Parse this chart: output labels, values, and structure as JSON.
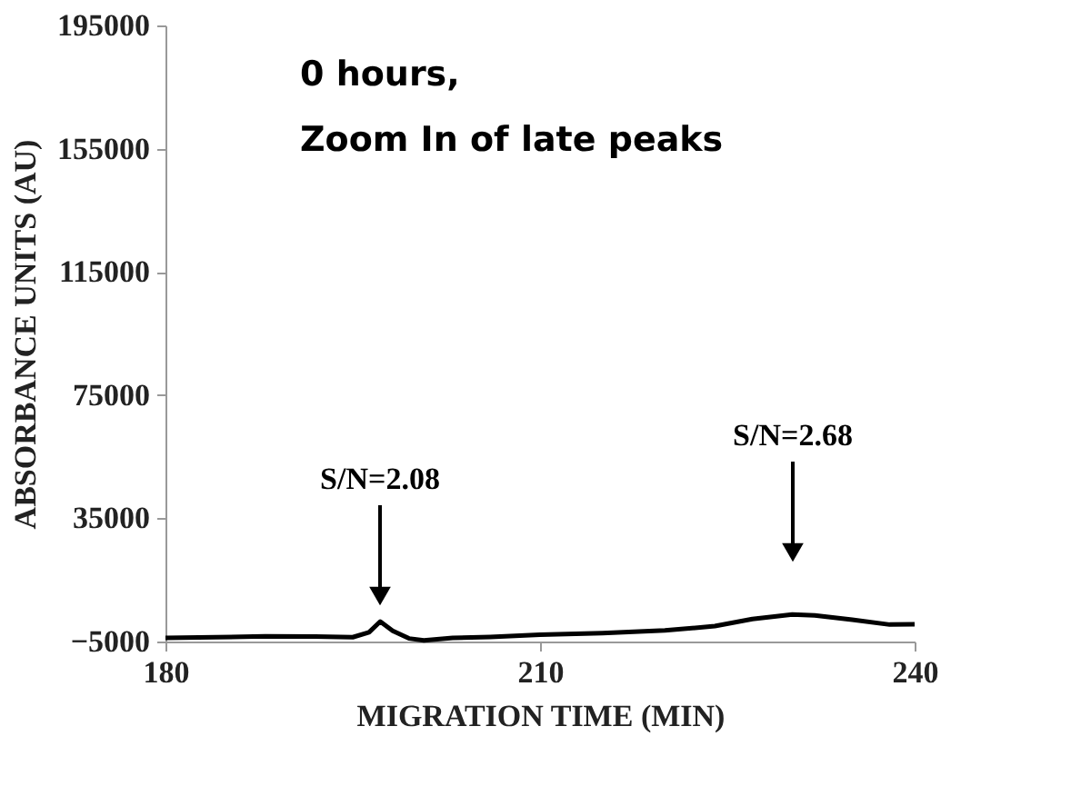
{
  "chart_data": {
    "type": "line",
    "xlabel": "MIGRATION TIME (MIN)",
    "ylabel": "ABSORBANCE UNITS (AU)",
    "x": [
      180,
      184,
      188,
      192,
      195,
      196.3,
      197.2,
      198.2,
      199.5,
      200.7,
      203,
      206,
      210,
      215,
      220,
      224,
      227,
      230.2,
      232,
      235,
      238,
      240
    ],
    "series": [
      {
        "color": "#000000",
        "values": [
          -3800,
          -3600,
          -3300,
          -3400,
          -3600,
          -2000,
          1500,
          -1500,
          -4000,
          -4600,
          -3800,
          -3500,
          -2800,
          -2300,
          -1400,
          0,
          2300,
          3800,
          3500,
          2100,
          500,
          600
        ]
      }
    ],
    "xlim": [
      180,
      240
    ],
    "xticks": [
      180,
      210,
      240
    ],
    "ylim": [
      -5000,
      195000
    ],
    "yticks": [
      -5000,
      35000,
      75000,
      115000,
      155000,
      195000
    ],
    "grid": false,
    "marker": "none",
    "line_style": "solid",
    "annotations": [
      "0 hours,",
      "Zoom In of late peaks",
      "S/N=2.08",
      "S/N=2.68"
    ]
  }
}
